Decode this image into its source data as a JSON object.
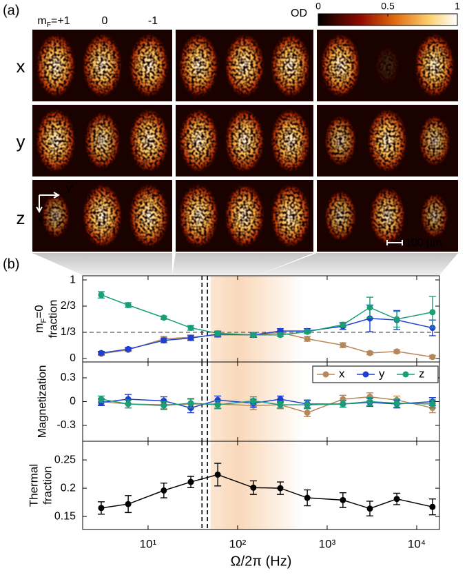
{
  "panel_labels": [
    "(a)",
    "(b)"
  ],
  "images": {
    "column_labels": [
      [
        "m",
        "F",
        "=+1"
      ],
      "0",
      "-1"
    ],
    "row_labels": [
      "x",
      "y",
      "z"
    ],
    "axis_labels": [
      "y′",
      "x"
    ],
    "scale_bar": "100 μm",
    "colorbar": {
      "label": "OD",
      "lim": [
        0,
        1
      ],
      "ticks": [
        0,
        0.5,
        1
      ]
    }
  },
  "chart_data": [
    {
      "type": "line",
      "ylabel": [
        [
          "m",
          "F",
          "=0"
        ],
        "fraction"
      ],
      "xlog": true,
      "x": [
        3,
        6,
        15,
        30,
        60,
        150,
        300,
        600,
        1500,
        3000,
        6000,
        15000
      ],
      "xlim": [
        1.86,
        17950
      ],
      "xticks": [
        10,
        100,
        1000,
        10000
      ],
      "ylim": [
        -0.044,
        1.053
      ],
      "yticks": [
        0,
        {
          "value": 0.3333,
          "label": "1/3"
        },
        {
          "value": 0.6667,
          "label": "2/3"
        },
        1
      ],
      "hline": 0.3333,
      "vlines": [
        40,
        46
      ],
      "shaded_band": [
        50,
        550
      ],
      "series": [
        {
          "color": "#b5875a",
          "values": [
            0.06,
            0.11,
            0.25,
            0.27,
            0.3,
            0.3,
            0.33,
            0.25,
            0.17,
            0.07,
            0.09,
            0.02
          ],
          "errors": [
            0.02,
            0.02,
            0.03,
            0.03,
            0.03,
            0.03,
            0.03,
            0.03,
            0.03,
            0.02,
            0.02,
            0.02
          ]
        },
        {
          "color": "#1f3fd0",
          "values": [
            0.07,
            0.12,
            0.23,
            0.26,
            0.31,
            0.3,
            0.35,
            0.35,
            0.41,
            0.51,
            0.49,
            0.39
          ],
          "errors": [
            0.02,
            0.02,
            0.03,
            0.03,
            0.03,
            0.03,
            0.03,
            0.03,
            0.04,
            0.17,
            0.12,
            0.1
          ]
        },
        {
          "color": "#1a9e77",
          "values": [
            0.81,
            0.68,
            0.52,
            0.39,
            0.32,
            0.3,
            0.3,
            0.34,
            0.43,
            0.65,
            0.5,
            0.59
          ],
          "errors": [
            0.04,
            0.03,
            0.02,
            0.03,
            0.03,
            0.02,
            0.02,
            0.02,
            0.03,
            0.13,
            0.1,
            0.2
          ]
        }
      ]
    },
    {
      "type": "line",
      "ylabel": [
        "Magnetization"
      ],
      "xlog": true,
      "x": [
        3,
        6,
        15,
        30,
        60,
        150,
        300,
        600,
        1500,
        3000,
        6000,
        15000
      ],
      "xlim": [
        1.86,
        17950
      ],
      "xticks": [
        10,
        100,
        1000,
        10000
      ],
      "ylim": [
        -0.5,
        0.5
      ],
      "yticks": [
        -0.3,
        0,
        0.3
      ],
      "vlines": [
        40,
        46
      ],
      "shaded_band": [
        50,
        550
      ],
      "legend": "upper right",
      "series": [
        {
          "name": "x",
          "color": "#b5875a",
          "values": [
            0,
            -0.03,
            -0.04,
            -0.03,
            -0.03,
            -0.05,
            -0.04,
            -0.14,
            0.03,
            0.06,
            0.02,
            -0.08
          ],
          "errors": [
            0.04,
            0.05,
            0.05,
            0.06,
            0.05,
            0.05,
            0.05,
            0.05,
            0.05,
            0.05,
            0.05,
            0.06
          ]
        },
        {
          "name": "y",
          "color": "#1f3fd0",
          "values": [
            -0.01,
            0.03,
            0.01,
            -0.08,
            0.02,
            -0.02,
            0.03,
            -0.03,
            -0.03,
            -0.01,
            -0.03,
            0.0
          ],
          "errors": [
            0.04,
            0.06,
            0.05,
            0.06,
            0.05,
            0.05,
            0.04,
            0.05,
            0.04,
            0.05,
            0.05,
            0.05
          ]
        },
        {
          "name": "z",
          "color": "#1a9e77",
          "values": [
            0.03,
            -0.03,
            -0.05,
            -0.02,
            -0.04,
            0.01,
            -0.04,
            -0.04,
            -0.03,
            0,
            -0.02,
            -0.03
          ],
          "errors": [
            0.04,
            0.05,
            0.05,
            0.06,
            0.05,
            0.05,
            0.04,
            0.05,
            0.04,
            0.05,
            0.05,
            0.05
          ]
        }
      ]
    },
    {
      "type": "line",
      "ylabel": [
        "Thermal",
        "fraction"
      ],
      "xlog": true,
      "xlabel": "Ω/2π (Hz)",
      "x": [
        3,
        6,
        15,
        30,
        60,
        150,
        300,
        600,
        1500,
        3000,
        6000,
        15000
      ],
      "xlim": [
        1.86,
        17950
      ],
      "xticks": [
        {
          "value": 10,
          "label": "10¹"
        },
        {
          "value": 100,
          "label": "10²"
        },
        {
          "value": 1000,
          "label": "10³"
        },
        {
          "value": 10000,
          "label": "10⁴"
        }
      ],
      "ylim": [
        0.127,
        0.283
      ],
      "yticks": [
        0.15,
        0.2,
        0.25
      ],
      "vlines": [
        40,
        46
      ],
      "shaded_band": [
        50,
        550
      ],
      "series": [
        {
          "color": "#000000",
          "values": [
            0.165,
            0.172,
            0.196,
            0.211,
            0.224,
            0.201,
            0.2,
            0.183,
            0.179,
            0.164,
            0.181,
            0.167
          ],
          "errors": [
            0.011,
            0.015,
            0.013,
            0.01,
            0.02,
            0.012,
            0.011,
            0.014,
            0.013,
            0.013,
            0.01,
            0.014
          ]
        }
      ]
    }
  ]
}
